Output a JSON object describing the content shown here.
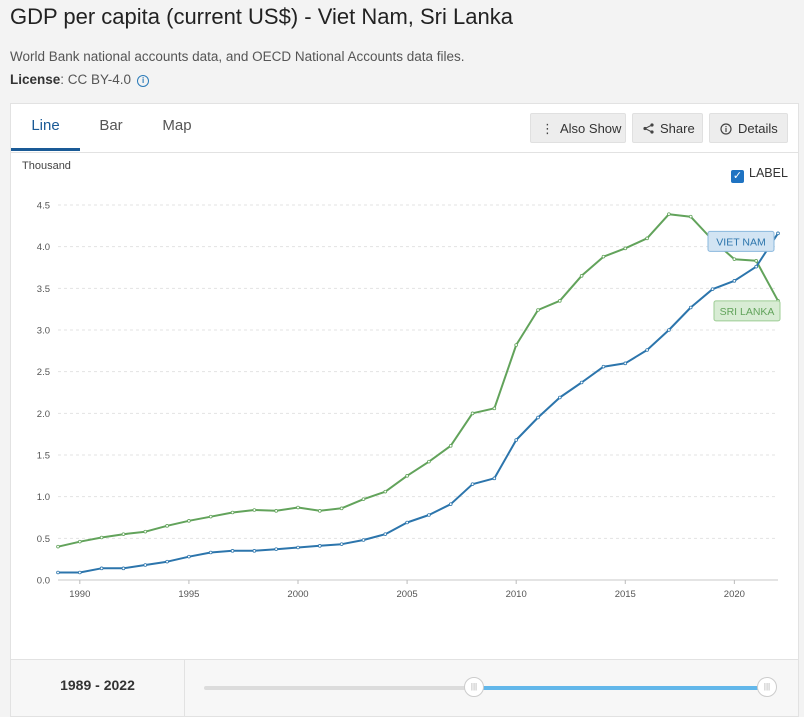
{
  "page": {
    "title": "GDP per capita (current US$) - Viet Nam, Sri Lanka",
    "source": "World Bank national accounts data, and OECD National Accounts data files.",
    "license_label": "License",
    "license_value": ": CC BY-4.0"
  },
  "tabs": [
    {
      "label": "Line",
      "active": true
    },
    {
      "label": "Bar",
      "active": false
    },
    {
      "label": "Map",
      "active": false
    }
  ],
  "toolbar": {
    "also_show": "Also Show",
    "share": "Share",
    "details": "Details"
  },
  "label_toggle": {
    "label": "LABEL",
    "checked": true
  },
  "range": {
    "text_start": "1989",
    "text_sep": " - ",
    "text_end": "2022"
  },
  "chart_data": {
    "type": "line",
    "title": "GDP per capita (current US$) - Viet Nam, Sri Lanka",
    "ylabel": "Thousand",
    "xlabel": "",
    "xlim": [
      1989,
      2022
    ],
    "ylim": [
      0,
      4.5
    ],
    "yticks": [
      0.0,
      0.5,
      1.0,
      1.5,
      2.0,
      2.5,
      3.0,
      3.5,
      4.0,
      4.5
    ],
    "ytick_labels": [
      "0.0",
      "0.5",
      "1.0",
      "1.5",
      "2.0",
      "2.5",
      "3.0",
      "3.5",
      "4.0",
      "4.5"
    ],
    "xticks": [
      1990,
      1995,
      2000,
      2005,
      2010,
      2015,
      2020
    ],
    "xtick_labels": [
      "1990",
      "1995",
      "2000",
      "2005",
      "2010",
      "2015",
      "2020"
    ],
    "grid": true,
    "x": [
      1989,
      1990,
      1991,
      1992,
      1993,
      1994,
      1995,
      1996,
      1997,
      1998,
      1999,
      2000,
      2001,
      2002,
      2003,
      2004,
      2005,
      2006,
      2007,
      2008,
      2009,
      2010,
      2011,
      2012,
      2013,
      2014,
      2015,
      2016,
      2017,
      2018,
      2019,
      2020,
      2021,
      2022
    ],
    "series": [
      {
        "name": "Viet Nam",
        "label": "VIET NAM",
        "color": "#2c75ac",
        "label_bg": "#d2e4f3",
        "label_border": "#8ab8dd",
        "values": [
          0.09,
          0.09,
          0.14,
          0.14,
          0.18,
          0.22,
          0.28,
          0.33,
          0.35,
          0.35,
          0.37,
          0.39,
          0.41,
          0.43,
          0.48,
          0.55,
          0.69,
          0.78,
          0.91,
          1.15,
          1.22,
          1.68,
          1.95,
          2.19,
          2.37,
          2.56,
          2.6,
          2.76,
          3.0,
          3.27,
          3.49,
          3.59,
          3.76,
          4.16
        ]
      },
      {
        "name": "Sri Lanka",
        "label": "SRI LANKA",
        "color": "#62a35b",
        "label_bg": "#d8ecd4",
        "label_border": "#9ccc93",
        "values": [
          0.4,
          0.46,
          0.51,
          0.55,
          0.58,
          0.65,
          0.71,
          0.76,
          0.81,
          0.84,
          0.83,
          0.87,
          0.83,
          0.86,
          0.97,
          1.06,
          1.25,
          1.42,
          1.61,
          2.0,
          2.06,
          2.82,
          3.24,
          3.35,
          3.65,
          3.88,
          3.98,
          4.1,
          4.39,
          4.36,
          4.08,
          3.85,
          3.83,
          3.35
        ]
      }
    ]
  }
}
